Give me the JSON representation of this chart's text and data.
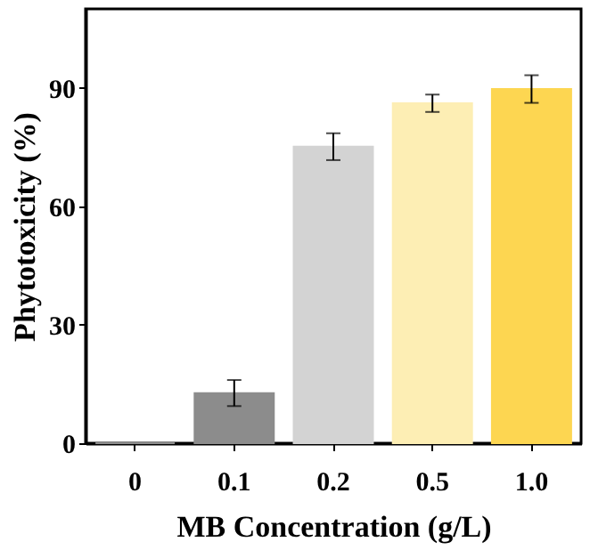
{
  "chart_data": {
    "type": "bar",
    "xlabel": "MB Concentration (g/L)",
    "ylabel": "Phytotoxicity (%)",
    "categories": [
      "0",
      "0.1",
      "0.2",
      "0.5",
      "1.0"
    ],
    "values": [
      0,
      12.7,
      75.1,
      86.1,
      89.7
    ],
    "errors": [
      null,
      3.3,
      3.4,
      2.2,
      3.5
    ],
    "colors": [
      "#8c8c8c",
      "#8c8c8c",
      "#d3d3d3",
      "#fdeeb4",
      "#fdd651"
    ],
    "ylim": [
      0,
      110
    ],
    "yticks": [
      0,
      30,
      60,
      90
    ],
    "grid": false
  }
}
